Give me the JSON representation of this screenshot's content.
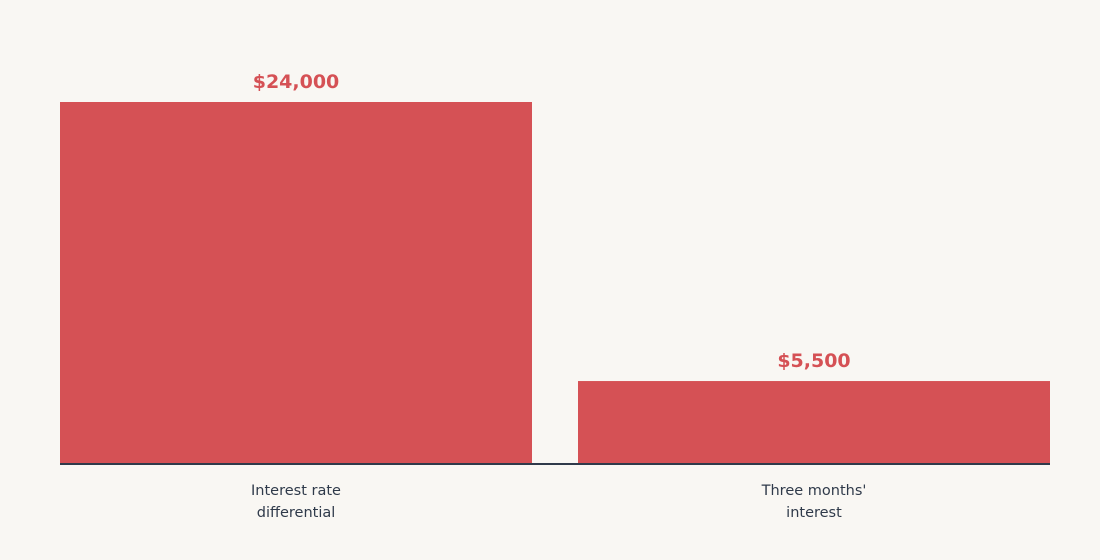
{
  "colors": {
    "bar": "#d55155",
    "axis": "#2f3a4a",
    "label": "#2f3a4a",
    "background": "#f9f7f3"
  },
  "chart_data": {
    "type": "bar",
    "title": "",
    "xlabel": "",
    "ylabel": "",
    "categories": [
      [
        "Interest rate",
        "differential"
      ],
      [
        "Three months'",
        "interest"
      ]
    ],
    "values": [
      24000,
      5500
    ],
    "value_labels": [
      "$24,000",
      "$5,500"
    ],
    "ylim": [
      0,
      24000
    ],
    "grid": false,
    "legend": "none"
  }
}
